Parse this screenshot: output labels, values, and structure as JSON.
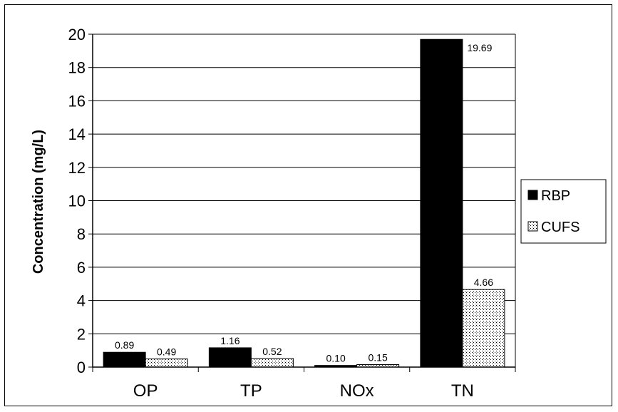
{
  "chart_data": {
    "type": "bar",
    "title": "",
    "xlabel": "",
    "ylabel": "Concentration (mg/L)",
    "ylim": [
      0,
      20
    ],
    "yticks": [
      "0",
      "2",
      "4",
      "6",
      "8",
      "10",
      "12",
      "14",
      "16",
      "18",
      "20"
    ],
    "grid": true,
    "legend_position": "right",
    "categories": [
      "OP",
      "TP",
      "NOx",
      "TN"
    ],
    "series": [
      {
        "name": "RBP",
        "values": [
          0.89,
          1.16,
          0.1,
          19.69
        ],
        "labels": [
          "0.89",
          "1.16",
          "0.10",
          "19.69"
        ],
        "color": "#000000"
      },
      {
        "name": "CUFS",
        "values": [
          0.49,
          0.52,
          0.15,
          4.66
        ],
        "labels": [
          "0.49",
          "0.52",
          "0.15",
          "4.66"
        ],
        "color": "#dcdcdc"
      }
    ]
  }
}
